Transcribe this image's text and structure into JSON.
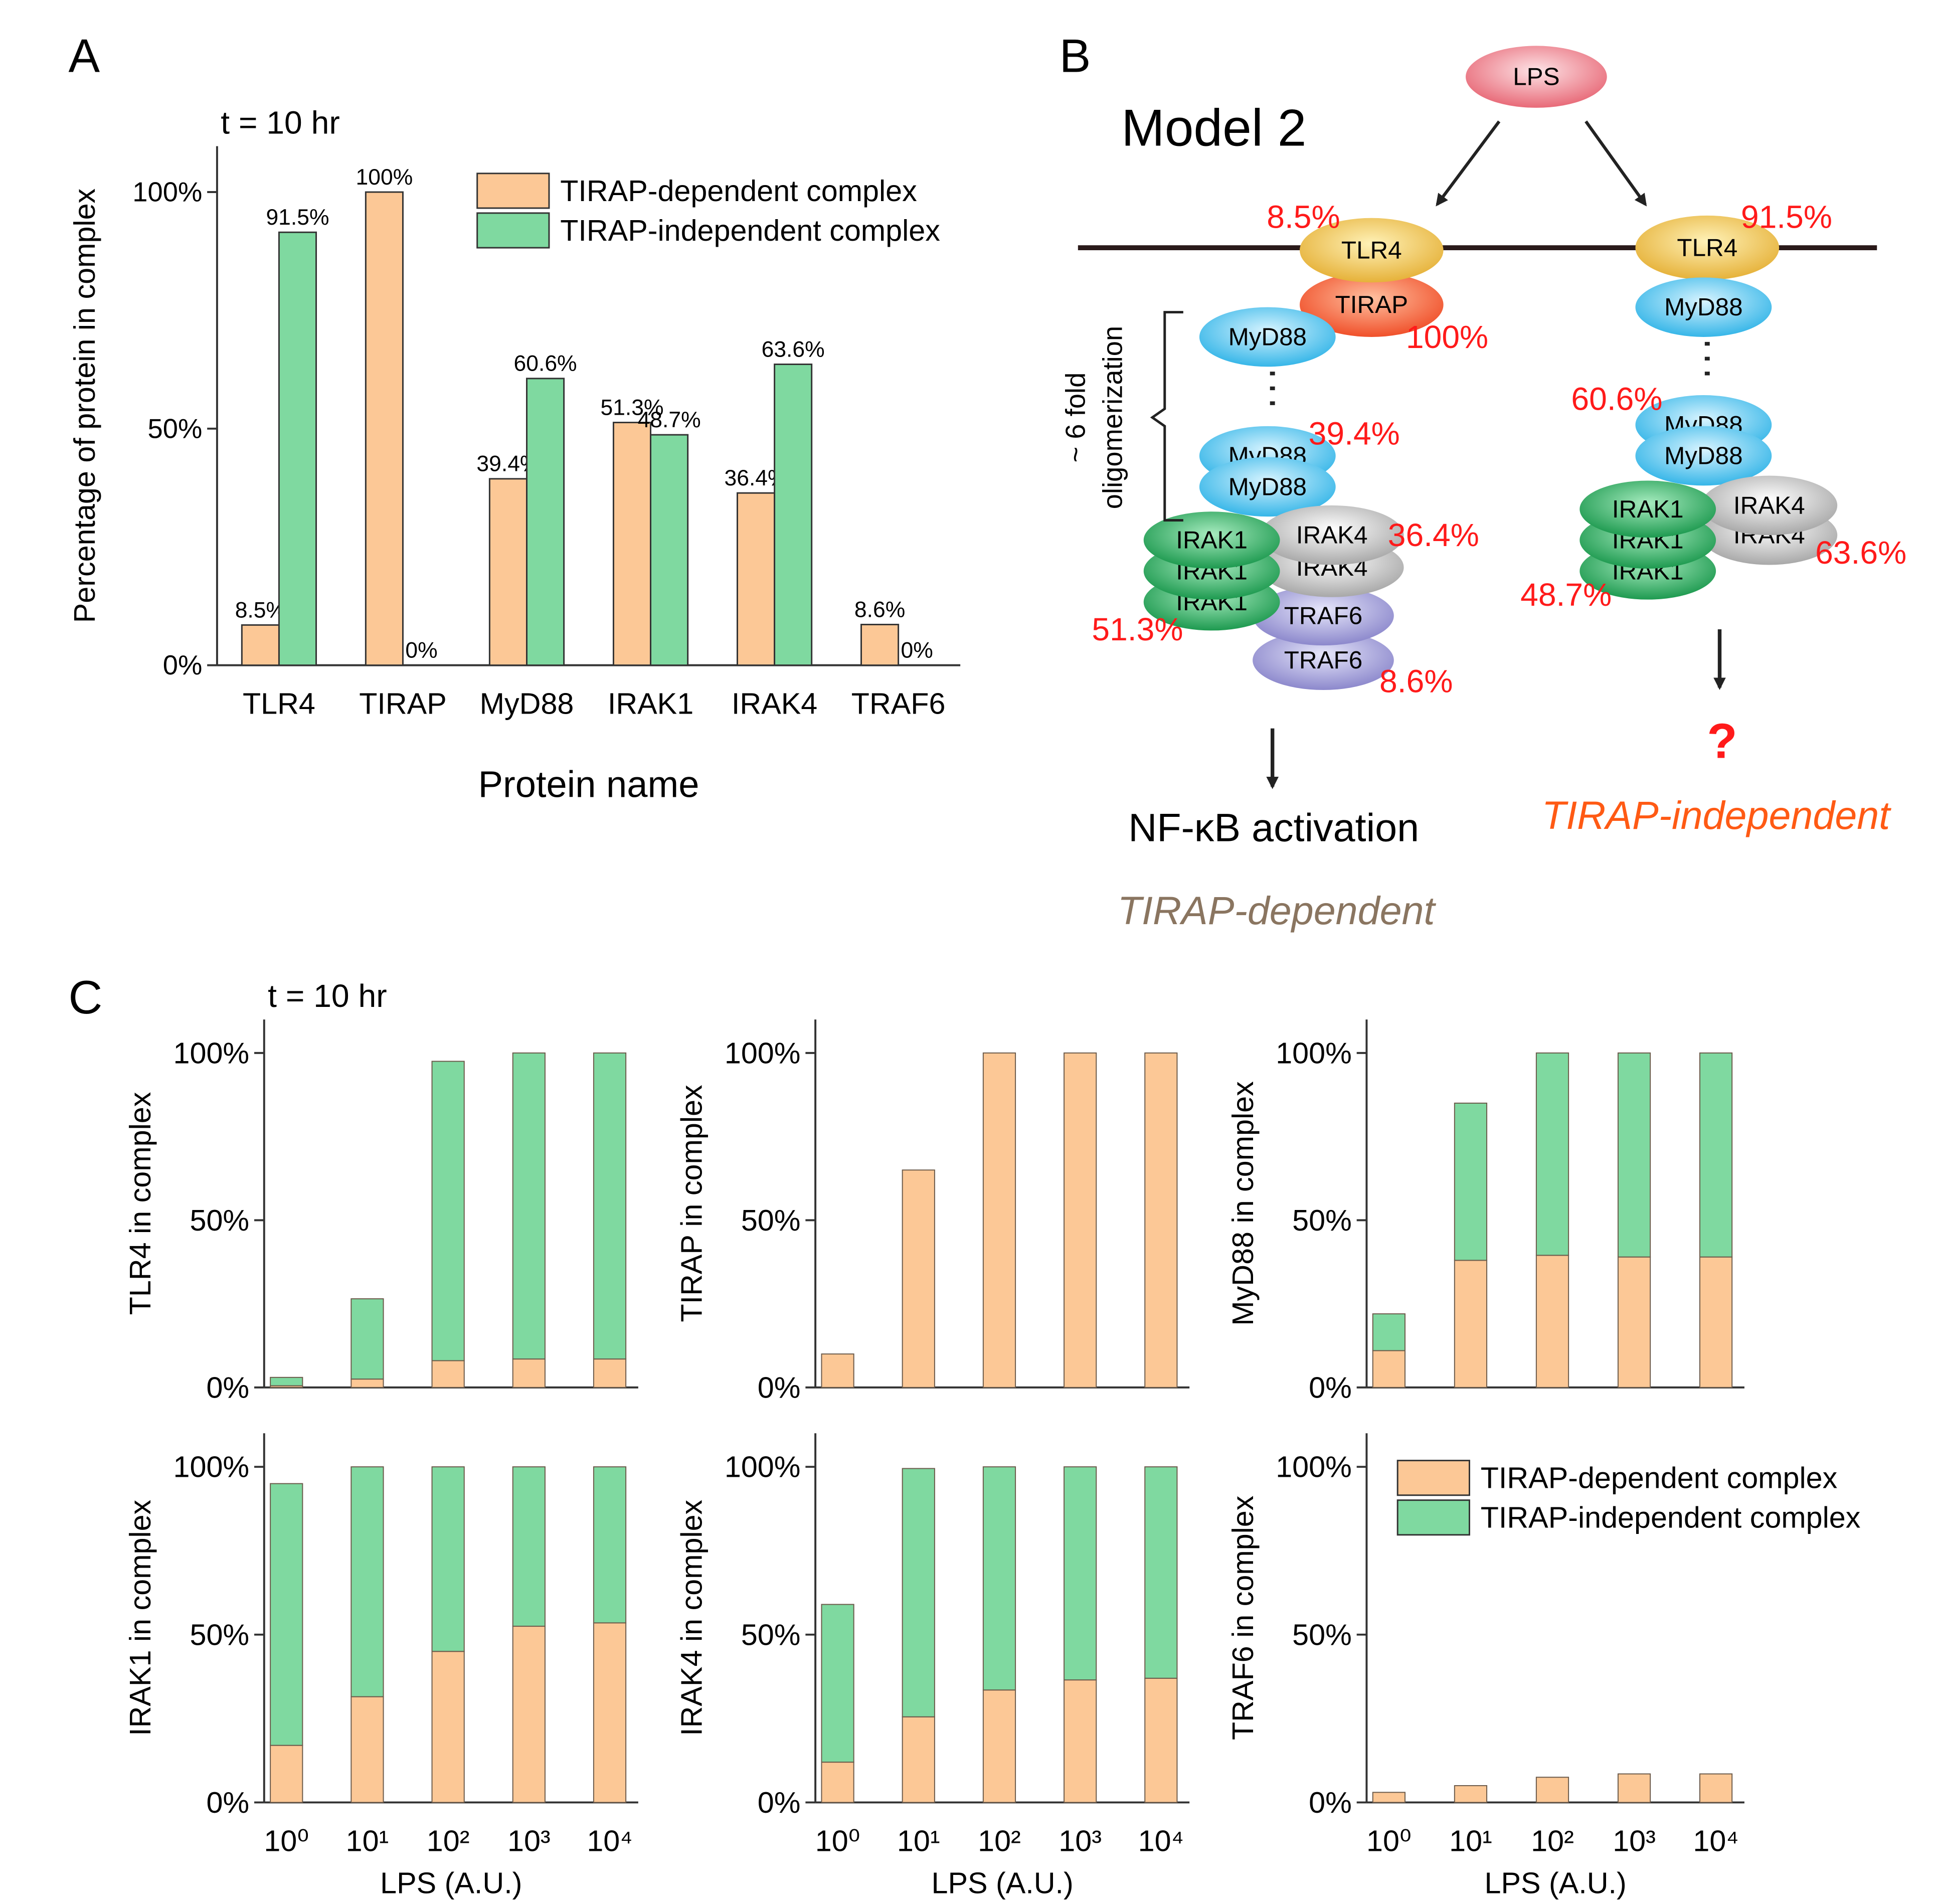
{
  "panel_labels": [
    "A",
    "B",
    "C"
  ],
  "chart_data": [
    {
      "type": "bar",
      "title": "t = 10 hr",
      "xlabel": "Protein name",
      "ylabel": "Percentage of protein in  complex",
      "categories": [
        "TLR4",
        "TIRAP",
        "MyD88",
        "IRAK1",
        "IRAK4",
        "TRAF6"
      ],
      "series": [
        {
          "name": "TIRAP-dependent complex",
          "color": "#fcc896",
          "values": [
            8.5,
            100,
            39.4,
            51.3,
            36.4,
            8.6
          ],
          "value_labels": [
            "8.5%",
            "100%",
            "39.4%",
            "51.3%",
            "36.4%",
            "8.6%"
          ]
        },
        {
          "name": "TIRAP-independent complex",
          "color": "#7fd9a0",
          "values": [
            91.5,
            0,
            60.6,
            48.7,
            63.6,
            0
          ],
          "value_labels": [
            "91.5%",
            "0%",
            "60.6%",
            "48.7%",
            "63.6%",
            "0%"
          ]
        }
      ],
      "ylim": [
        0,
        109.7
      ],
      "yticks": [
        {
          "value": 0,
          "label": "0%"
        },
        {
          "value": 50,
          "label": "50%"
        },
        {
          "value": 100,
          "label": "100%"
        }
      ],
      "legend": "upper right"
    },
    {
      "type": "bar",
      "stacked": true,
      "title": "t = 10 hr",
      "ylabel": "TLR4 in complex",
      "categories": [
        null,
        null,
        null,
        null,
        null
      ],
      "series": [
        {
          "color": "#fcc896",
          "values": [
            0.5,
            2.5,
            8,
            8.5,
            8.5
          ]
        },
        {
          "color": "#7fd9a0",
          "values": [
            2.5,
            24,
            89.5,
            91.5,
            91.5
          ]
        }
      ],
      "ylim": [
        0,
        110
      ],
      "yticks": [
        {
          "value": 0,
          "label": "0%"
        },
        {
          "value": 50,
          "label": "50%"
        },
        {
          "value": 100,
          "label": "100%"
        }
      ]
    },
    {
      "type": "bar",
      "stacked": true,
      "ylabel": "TIRAP in complex",
      "categories": [
        null,
        null,
        null,
        null,
        null
      ],
      "series": [
        {
          "color": "#fcc896",
          "values": [
            10,
            65,
            100,
            100,
            100
          ]
        },
        {
          "color": "#7fd9a0",
          "values": [
            0,
            0,
            0,
            0,
            0
          ]
        }
      ],
      "ylim": [
        0,
        110
      ],
      "yticks": [
        {
          "value": 0,
          "label": "0%"
        },
        {
          "value": 50,
          "label": "50%"
        },
        {
          "value": 100,
          "label": "100%"
        }
      ]
    },
    {
      "type": "bar",
      "stacked": true,
      "ylabel": "MyD88 in complex",
      "categories": [
        null,
        null,
        null,
        null,
        null
      ],
      "series": [
        {
          "color": "#fcc896",
          "values": [
            11,
            38,
            39.5,
            39,
            39
          ]
        },
        {
          "color": "#7fd9a0",
          "values": [
            11,
            47,
            60.5,
            61,
            61
          ]
        }
      ],
      "ylim": [
        0,
        110
      ],
      "yticks": [
        {
          "value": 0,
          "label": "0%"
        },
        {
          "value": 50,
          "label": "50%"
        },
        {
          "value": 100,
          "label": "100%"
        }
      ]
    },
    {
      "type": "bar",
      "stacked": true,
      "ylabel": "IRAK1 in complex",
      "xlabel": "LPS (A.U.)",
      "categories": [
        "10⁰",
        "10¹",
        "10²",
        "10³",
        "10⁴"
      ],
      "series": [
        {
          "color": "#fcc896",
          "values": [
            17,
            31.5,
            45,
            52.5,
            53.5
          ]
        },
        {
          "color": "#7fd9a0",
          "values": [
            78,
            68.5,
            55,
            47.5,
            46.5
          ]
        }
      ],
      "ylim": [
        0,
        110
      ],
      "yticks": [
        {
          "value": 0,
          "label": "0%"
        },
        {
          "value": 50,
          "label": "50%"
        },
        {
          "value": 100,
          "label": "100%"
        }
      ]
    },
    {
      "type": "bar",
      "stacked": true,
      "ylabel": "IRAK4 in complex",
      "xlabel": "LPS (A.U.)",
      "categories": [
        "10⁰",
        "10¹",
        "10²",
        "10³",
        "10⁴"
      ],
      "series": [
        {
          "color": "#fcc896",
          "values": [
            12,
            25.5,
            33.5,
            36.5,
            37
          ]
        },
        {
          "color": "#7fd9a0",
          "values": [
            47,
            74,
            66.5,
            63.5,
            63
          ]
        }
      ],
      "ylim": [
        0,
        110
      ],
      "yticks": [
        {
          "value": 0,
          "label": "0%"
        },
        {
          "value": 50,
          "label": "50%"
        },
        {
          "value": 100,
          "label": "100%"
        }
      ]
    },
    {
      "type": "bar",
      "stacked": true,
      "ylabel": "TRAF6 in complex",
      "xlabel": "LPS (A.U.)",
      "categories": [
        "10⁰",
        "10¹",
        "10²",
        "10³",
        "10⁴"
      ],
      "series": [
        {
          "name": "TIRAP-dependent complex",
          "color": "#fcc896",
          "values": [
            3,
            5,
            7.5,
            8.5,
            8.5
          ]
        },
        {
          "name": "TIRAP-independent complex",
          "color": "#7fd9a0",
          "values": [
            0,
            0,
            0,
            0,
            0
          ]
        }
      ],
      "ylim": [
        0,
        110
      ],
      "yticks": [
        {
          "value": 0,
          "label": "0%"
        },
        {
          "value": 50,
          "label": "50%"
        },
        {
          "value": 100,
          "label": "100%"
        }
      ],
      "legend": "upper right"
    }
  ],
  "diagram": {
    "title": "Model 2",
    "ligand": "LPS",
    "left_nodes": [
      "TLR4",
      "TIRAP",
      "MyD88",
      "MyD88",
      "MyD88",
      "IRAK1",
      "IRAK1",
      "IRAK1",
      "IRAK4",
      "IRAK4",
      "TRAF6",
      "TRAF6"
    ],
    "left_percents": [
      "8.5%",
      "100%",
      "39.4%",
      "36.4%",
      "51.3%",
      "8.6%"
    ],
    "oligomerization": [
      "~ 6 fold",
      "oligomerization"
    ],
    "left_outcome": "NF-κB activation",
    "left_label": "TIRAP-dependent",
    "right_nodes": [
      "TLR4",
      "MyD88",
      "MyD88",
      "MyD88",
      "IRAK1",
      "IRAK1",
      "IRAK1",
      "IRAK4",
      "IRAK4"
    ],
    "right_percents": [
      "91.5%",
      "60.6%",
      "63.6%",
      "48.7%"
    ],
    "right_outcome": "?",
    "right_label": "TIRAP-independent"
  }
}
